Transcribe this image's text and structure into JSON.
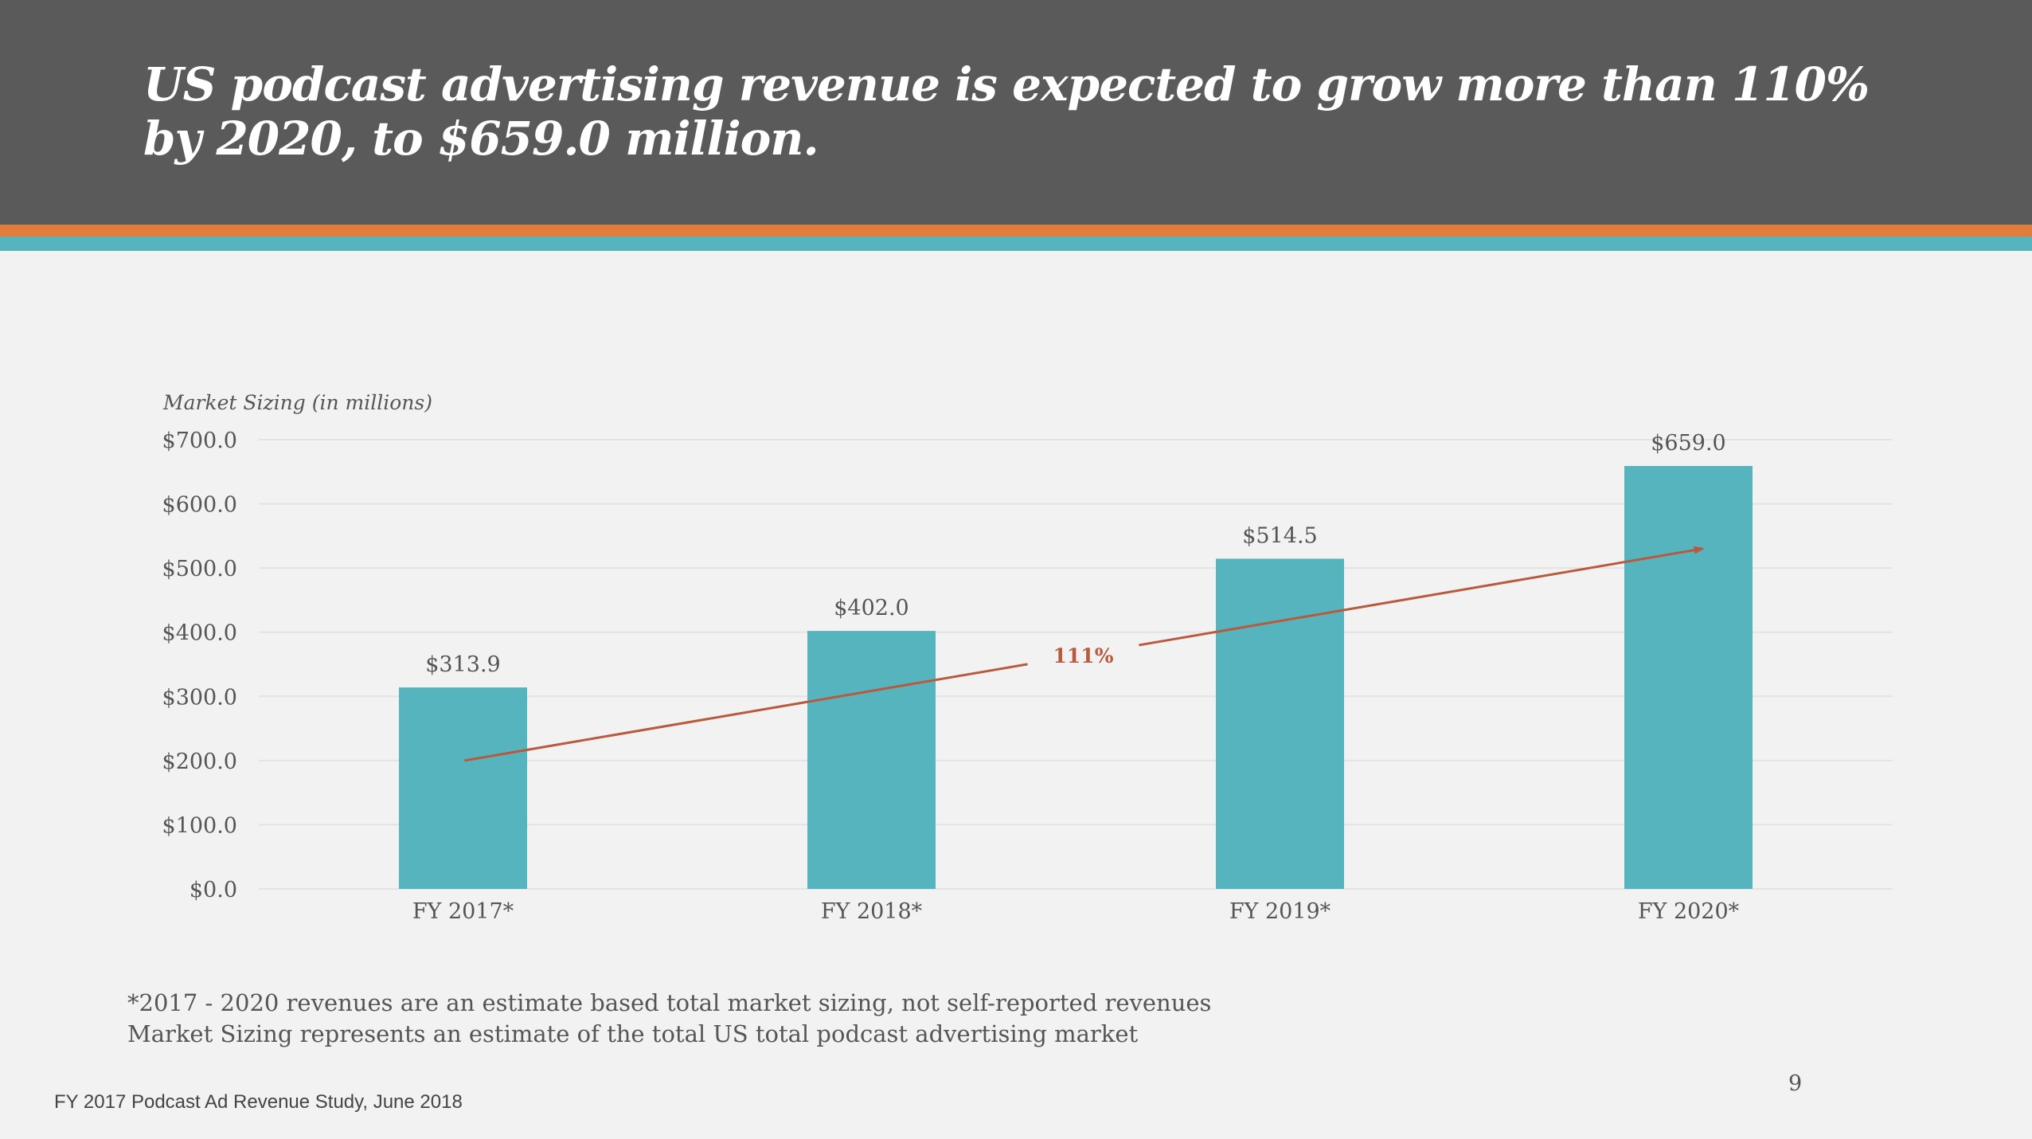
{
  "slide": {
    "title": "US podcast advertising revenue is expected to grow more than 110% by 2020, to $659.0 million.",
    "footnotes": [
      "*2017 - 2020 revenues are an estimate based total market sizing, not self-reported revenues",
      "Market Sizing represents an estimate of the total US total podcast advertising market"
    ],
    "source": "FY 2017 Podcast Ad Revenue Study, June 2018",
    "page_number": "9"
  },
  "colors": {
    "header_bg": "#5a5a5a",
    "stripe_orange": "#e07d3a",
    "stripe_teal": "#56b4be",
    "bar": "#56b4be",
    "arrow": "#b85a3e",
    "text": "#555555",
    "gridline": "#e3e3e3"
  },
  "chart_data": {
    "type": "bar",
    "title": "",
    "ylabel": "Market Sizing (in millions)",
    "xlabel": "",
    "categories": [
      "FY 2017*",
      "FY 2018*",
      "FY 2019*",
      "FY 2020*"
    ],
    "values": [
      313.9,
      402.0,
      514.5,
      659.0
    ],
    "data_labels": [
      "$313.9",
      "$402.0",
      "$514.5",
      "$659.0"
    ],
    "ylim": [
      0,
      700
    ],
    "yticks": [
      0,
      100,
      200,
      300,
      400,
      500,
      600,
      700
    ],
    "ytick_labels": [
      "$0.0",
      "$100.0",
      "$200.0",
      "$300.0",
      "$400.0",
      "$500.0",
      "$600.0",
      "$700.0"
    ],
    "grid": true,
    "legend": "none",
    "annotations": [
      {
        "type": "arrow",
        "label": "111%",
        "from_category": "FY 2017*",
        "from_value": 200,
        "to_category": "FY 2020*",
        "to_value": 530
      }
    ]
  }
}
